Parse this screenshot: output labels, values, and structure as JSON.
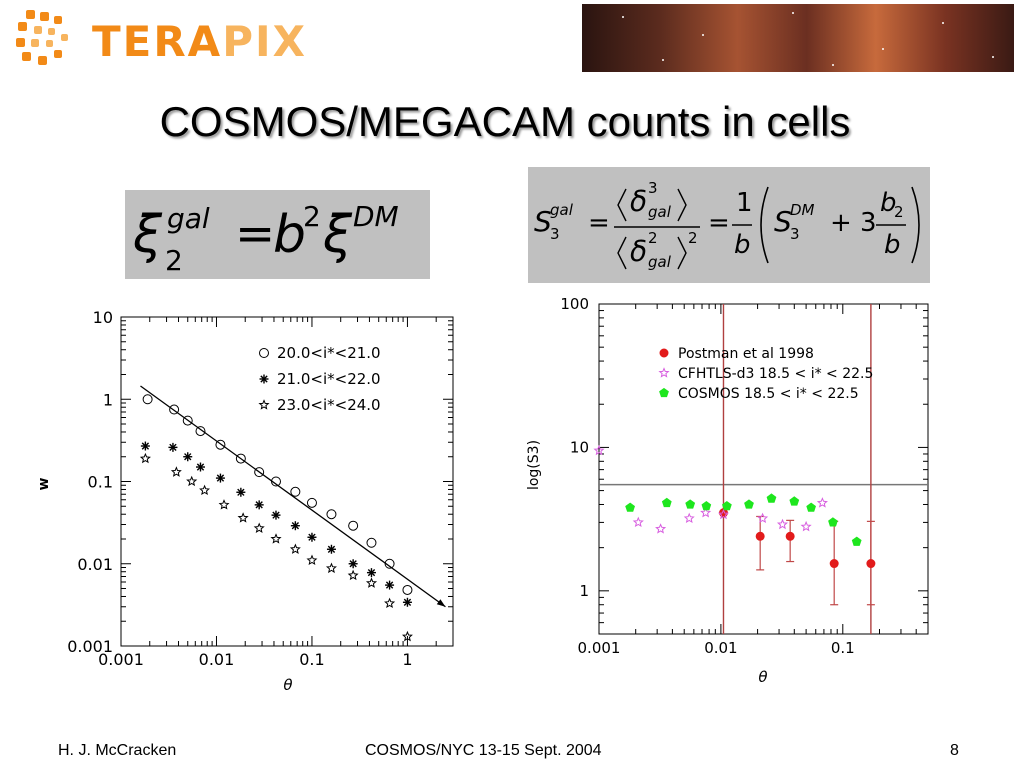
{
  "logo": {
    "text_a": "TERA",
    "text_b": "PIX"
  },
  "slide": {
    "title": "COSMOS/MEGACAM counts in cells"
  },
  "equations": {
    "xi": {
      "left": "ξ",
      "sup_left": "gal",
      "sub_left": "2",
      "eq": "=",
      "b": "b",
      "b_exp": "2",
      "right": "ξ",
      "sup_right": "DM"
    },
    "s3": {
      "S": "S",
      "sup": "gal",
      "sub": "3",
      "eq": "=",
      "delta": "δ",
      "d_num_exp": "3",
      "d_sub": "gal",
      "d_den_exp": "2",
      "den_exp": "2",
      "one": "1",
      "b": "b",
      "S_dm": "S",
      "sup_dm": "DM",
      "sub_dm": "3",
      "plus3": "+ 3",
      "b2": "b",
      "b2_sub": "2"
    }
  },
  "chart_data": [
    {
      "type": "scatter",
      "title": "",
      "xlabel": "θ",
      "ylabel": "w",
      "xscale": "log",
      "yscale": "log",
      "xlim": [
        0.001,
        3
      ],
      "ylim": [
        0.001,
        10
      ],
      "xticks": [
        "0.001",
        "0.01",
        "0.1",
        "1"
      ],
      "yticks": [
        "10",
        "1",
        "0.1",
        "0.01",
        "0.001"
      ],
      "legend_position": "top-right",
      "series": [
        {
          "name": "20.0<i*<21.0",
          "marker": "open-circle",
          "x": [
            0.0019,
            0.0036,
            0.005,
            0.0068,
            0.011,
            0.018,
            0.028,
            0.042,
            0.067,
            0.1,
            0.16,
            0.27,
            0.42,
            0.65,
            1.0
          ],
          "y": [
            1.0,
            0.75,
            0.55,
            0.41,
            0.28,
            0.19,
            0.13,
            0.1,
            0.075,
            0.055,
            0.04,
            0.029,
            0.018,
            0.01,
            0.0048
          ]
        },
        {
          "name": "21.0<i*<22.0",
          "marker": "asterisk",
          "x": [
            0.0018,
            0.0035,
            0.005,
            0.0068,
            0.011,
            0.018,
            0.028,
            0.042,
            0.067,
            0.1,
            0.16,
            0.27,
            0.42,
            0.65,
            1.0
          ],
          "y": [
            0.27,
            0.26,
            0.2,
            0.15,
            0.11,
            0.074,
            0.052,
            0.039,
            0.029,
            0.021,
            0.015,
            0.01,
            0.0078,
            0.0055,
            0.0034
          ]
        },
        {
          "name": "23.0<i*<24.0",
          "marker": "star",
          "x": [
            0.0018,
            0.0038,
            0.0055,
            0.0075,
            0.012,
            0.019,
            0.028,
            0.042,
            0.067,
            0.1,
            0.16,
            0.27,
            0.42,
            0.65,
            1.0
          ],
          "y": [
            0.19,
            0.13,
            0.1,
            0.078,
            0.052,
            0.036,
            0.027,
            0.02,
            0.015,
            0.011,
            0.0088,
            0.0072,
            0.0058,
            0.0033,
            0.0013
          ]
        }
      ],
      "annotation": {
        "type": "arrow",
        "x": [
          0.0016,
          2.5
        ],
        "y": [
          1.45,
          0.003
        ]
      }
    },
    {
      "type": "scatter",
      "title": "",
      "xlabel": "θ",
      "ylabel": "log(S3)",
      "xscale": "log",
      "yscale": "log",
      "xlim": [
        0.001,
        0.5
      ],
      "ylim": [
        0.5,
        100
      ],
      "xticks": [
        "0.001",
        "0.01",
        "0.1"
      ],
      "yticks": [
        "100",
        "10",
        "1"
      ],
      "legend_position": "top",
      "hlines": [
        5.5
      ],
      "vlines": [
        0.0105,
        0.17
      ],
      "series": [
        {
          "name": "Postman et al 1998",
          "marker": "filled-circle",
          "color": "#e21b1b",
          "x": [
            0.0105,
            0.021,
            0.037,
            0.085,
            0.17
          ],
          "y": [
            3.5,
            2.4,
            2.4,
            1.55,
            1.55
          ],
          "err_low": [
            0.0,
            1.0,
            0.8,
            0.75,
            0.75
          ],
          "err_high": [
            0.0,
            0.9,
            0.7,
            1.5,
            1.5
          ]
        },
        {
          "name": "CFHTLS-d3 18.5 < i* < 22.5",
          "marker": "open-star",
          "color": "#d85fe0",
          "x": [
            0.001,
            0.0021,
            0.0032,
            0.0055,
            0.0075,
            0.0105,
            0.022,
            0.032,
            0.05,
            0.068
          ],
          "y": [
            9.5,
            3.0,
            2.7,
            3.2,
            3.5,
            3.4,
            3.2,
            2.9,
            2.8,
            4.1
          ]
        },
        {
          "name": "COSMOS 18.5 < i* < 22.5",
          "marker": "filled-pentagon",
          "color": "#1ee61e",
          "x": [
            0.0018,
            0.0036,
            0.0056,
            0.0076,
            0.0112,
            0.017,
            0.026,
            0.04,
            0.055,
            0.083,
            0.13
          ],
          "y": [
            3.8,
            4.1,
            4.0,
            3.9,
            3.9,
            4.0,
            4.4,
            4.2,
            3.8,
            3.0,
            2.2
          ]
        }
      ]
    }
  ],
  "footer": {
    "author": "H. J. McCracken",
    "event": "COSMOS/NYC 13-15 Sept. 2004",
    "page": "8"
  }
}
